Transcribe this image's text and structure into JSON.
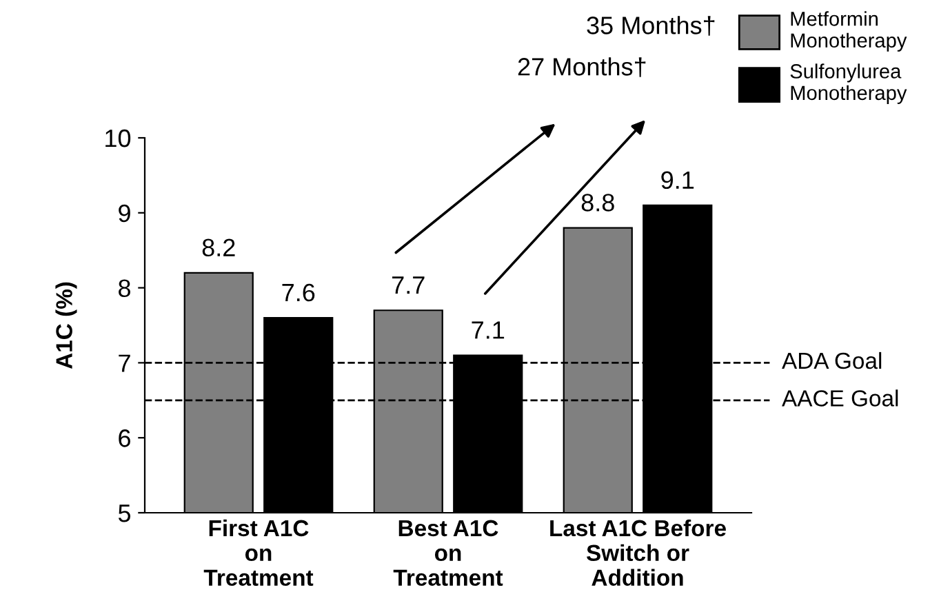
{
  "chart_data": {
    "type": "bar",
    "ylabel": "A1C (%)",
    "categories": [
      "First A1C\non\nTreatment",
      "Best A1C\non\nTreatment",
      "Last A1C Before\nSwitch or\nAddition"
    ],
    "series": [
      {
        "name": "Metformin\nMonotherapy",
        "color": "#808080",
        "values": [
          8.2,
          7.7,
          8.8
        ]
      },
      {
        "name": "Sulfonylurea\nMonotherapy",
        "color": "#000000",
        "values": [
          7.6,
          7.1,
          9.1
        ]
      }
    ],
    "data_labels": true,
    "ylim": [
      5,
      10
    ],
    "yticks": [
      5,
      6,
      7,
      8,
      9,
      10
    ],
    "ref_lines": [
      {
        "axis": "y",
        "value": 7.0,
        "label": "ADA Goal",
        "line_style": "dashed",
        "color": "#000000"
      },
      {
        "axis": "y",
        "value": 6.5,
        "label": "AACE Goal",
        "line_style": "dashed",
        "color": "#000000"
      }
    ],
    "annotations": [
      "35 Months†",
      "27 Months†"
    ],
    "grid": false,
    "legend": "top right"
  }
}
